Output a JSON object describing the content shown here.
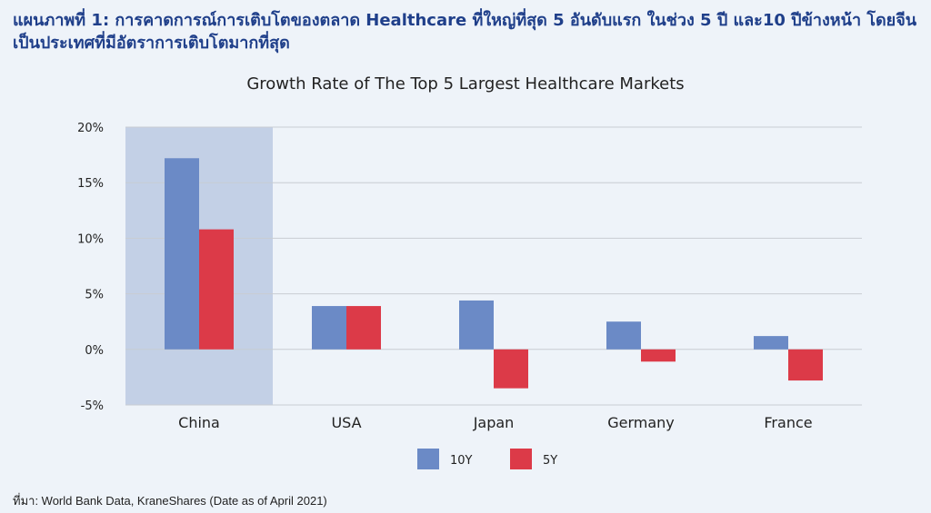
{
  "heading": "แผนภาพที่ 1: การคาดการณ์การเติบโตของตลาด Healthcare ที่ใหญ่ที่สุด 5 อันดับแรก ในช่วง 5 ปี และ10 ปีข้างหน้า โดยจีนเป็นประเทศที่มีอัตราการเติบโตมากที่สุด",
  "source": "ที่มา: World Bank Data, KraneShares (Date as of April 2021)",
  "chart_data": {
    "type": "bar",
    "title": "Growth Rate of The Top 5 Largest Healthcare Markets",
    "xlabel": "",
    "ylabel": "",
    "categories": [
      "China",
      "USA",
      "Japan",
      "Germany",
      "France"
    ],
    "series": [
      {
        "name": "10Y",
        "values": [
          17.2,
          3.9,
          4.4,
          2.5,
          1.2
        ],
        "color": "#6b8ac6"
      },
      {
        "name": "5Y",
        "values": [
          10.8,
          3.9,
          -3.5,
          -1.1,
          -2.8
        ],
        "color": "#dc3a48"
      }
    ],
    "ylim": [
      -5,
      20
    ],
    "yticks": [
      20,
      15,
      10,
      5,
      0,
      -5
    ],
    "ytick_labels": [
      "20%",
      "15%",
      "10%",
      "5%",
      "0%",
      "-5%"
    ],
    "highlight_category": "China",
    "highlight_color": "#c3d0e6",
    "grid": true,
    "legend_position": "bottom-center"
  }
}
